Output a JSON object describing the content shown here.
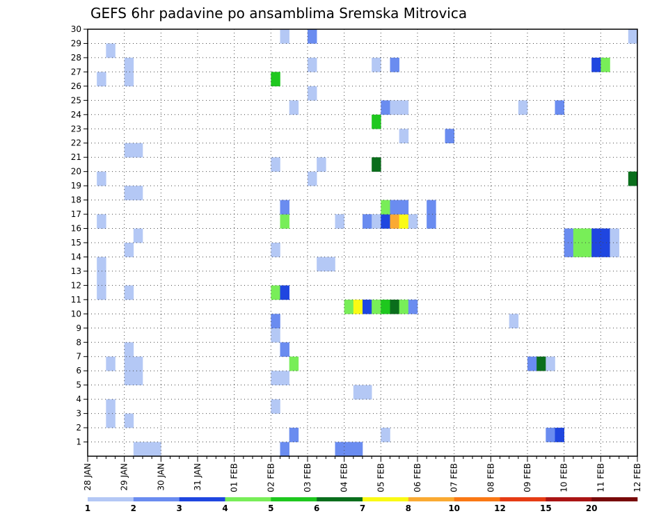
{
  "chart_data": {
    "type": "heatmap",
    "title": "GEFS 6hr padavine po ansamblima Sremska Mitrovica",
    "xlabel": "",
    "ylabel": "",
    "x_ticks": [
      "28 JAN",
      "29 JAN",
      "30 JAN",
      "31 JAN",
      "01 FEB",
      "02 FEB",
      "03 FEB",
      "04 FEB",
      "05 FEB",
      "06 FEB",
      "07 FEB",
      "08 FEB",
      "09 FEB",
      "10 FEB",
      "11 FEB",
      "12 FEB"
    ],
    "y_ticks": [
      "1",
      "2",
      "3",
      "4",
      "5",
      "6",
      "7",
      "8",
      "9",
      "10",
      "11",
      "12",
      "13",
      "14",
      "15",
      "16",
      "17",
      "18",
      "19",
      "20",
      "21",
      "22",
      "23",
      "24",
      "25",
      "26",
      "27",
      "28",
      "29",
      "30"
    ],
    "x_range_days": [
      0,
      15
    ],
    "y_range_members": [
      0,
      30
    ],
    "grid": true,
    "colorbar": {
      "levels": [
        1,
        2,
        3,
        4,
        5,
        6,
        7,
        8,
        10,
        12,
        15,
        20
      ],
      "level_labels": [
        "1",
        "2",
        "3",
        "4",
        "5",
        "6",
        "7",
        "8",
        "10",
        "12",
        "15",
        "20"
      ],
      "colors": [
        "#b4c8f5",
        "#6a8cf0",
        "#1f46e0",
        "#78ee58",
        "#1ec81e",
        "#0a6e1c",
        "#fafa14",
        "#faaa32",
        "#fa7814",
        "#e63c14",
        "#aa1414",
        "#780a0a"
      ]
    },
    "cells_day_member_level": [
      [
        1.25,
        0,
        0
      ],
      [
        1.5,
        0,
        0
      ],
      [
        1.75,
        0,
        0
      ],
      [
        5.25,
        0,
        1
      ],
      [
        6.75,
        0,
        1
      ],
      [
        7,
        0,
        1
      ],
      [
        7.25,
        0,
        1
      ],
      [
        5.5,
        1,
        1
      ],
      [
        8,
        1,
        0
      ],
      [
        12.5,
        1,
        1
      ],
      [
        12.75,
        1,
        2
      ],
      [
        0.5,
        2,
        0
      ],
      [
        1,
        2,
        0
      ],
      [
        0.5,
        3,
        0
      ],
      [
        5,
        3,
        0
      ],
      [
        7.25,
        4,
        0
      ],
      [
        7.5,
        4,
        0
      ],
      [
        1,
        5,
        0
      ],
      [
        1.25,
        5,
        0
      ],
      [
        5,
        5,
        0
      ],
      [
        5.25,
        5,
        0
      ],
      [
        0.5,
        6,
        0
      ],
      [
        1,
        6,
        0
      ],
      [
        1.25,
        6,
        0
      ],
      [
        5.5,
        6,
        3
      ],
      [
        12,
        6,
        1
      ],
      [
        12.25,
        6,
        5
      ],
      [
        12.5,
        6,
        0
      ],
      [
        1,
        7,
        0
      ],
      [
        5.25,
        7,
        1
      ],
      [
        5,
        8,
        0
      ],
      [
        5,
        9,
        1
      ],
      [
        11.5,
        9,
        0
      ],
      [
        7,
        10,
        3
      ],
      [
        7.25,
        10,
        6
      ],
      [
        7.5,
        10,
        2
      ],
      [
        7.75,
        10,
        3
      ],
      [
        8,
        10,
        4
      ],
      [
        8.25,
        10,
        5
      ],
      [
        8.5,
        10,
        3
      ],
      [
        8.75,
        10,
        1
      ],
      [
        5,
        11,
        3
      ],
      [
        5.25,
        11,
        2
      ],
      [
        1,
        11,
        0
      ],
      [
        0.25,
        11,
        0
      ],
      [
        0.25,
        12,
        0
      ],
      [
        0.25,
        13,
        0
      ],
      [
        6.25,
        13,
        0
      ],
      [
        6.5,
        13,
        0
      ],
      [
        1,
        14,
        0
      ],
      [
        5,
        14,
        0
      ],
      [
        13,
        14,
        1
      ],
      [
        13.25,
        14,
        3
      ],
      [
        13.5,
        14,
        3
      ],
      [
        13.75,
        14,
        2
      ],
      [
        14,
        14,
        2
      ],
      [
        14.25,
        14,
        0
      ],
      [
        1.25,
        15,
        0
      ],
      [
        13,
        15,
        1
      ],
      [
        13.25,
        15,
        3
      ],
      [
        13.5,
        15,
        3
      ],
      [
        13.75,
        15,
        2
      ],
      [
        14,
        15,
        2
      ],
      [
        14.25,
        15,
        0
      ],
      [
        0.25,
        16,
        0
      ],
      [
        5.25,
        16,
        3
      ],
      [
        6.75,
        16,
        0
      ],
      [
        7.5,
        16,
        1
      ],
      [
        7.75,
        16,
        0
      ],
      [
        8,
        16,
        2
      ],
      [
        8.25,
        16,
        7
      ],
      [
        8.5,
        16,
        6
      ],
      [
        8.75,
        16,
        0
      ],
      [
        9.25,
        16,
        1
      ],
      [
        5.25,
        17,
        1
      ],
      [
        8,
        17,
        3
      ],
      [
        8.25,
        17,
        1
      ],
      [
        8.5,
        17,
        1
      ],
      [
        9.25,
        17,
        1
      ],
      [
        1,
        18,
        0
      ],
      [
        1.25,
        18,
        0
      ],
      [
        0.25,
        19,
        0
      ],
      [
        6,
        19,
        0
      ],
      [
        14.75,
        19,
        5
      ],
      [
        5,
        20,
        0
      ],
      [
        6.25,
        20,
        0
      ],
      [
        7.75,
        20,
        5
      ],
      [
        1,
        21,
        0
      ],
      [
        1.25,
        21,
        0
      ],
      [
        8.5,
        22,
        0
      ],
      [
        9.75,
        22,
        1
      ],
      [
        7.75,
        23,
        4
      ],
      [
        5.5,
        24,
        0
      ],
      [
        8,
        24,
        1
      ],
      [
        8.25,
        24,
        0
      ],
      [
        8.5,
        24,
        0
      ],
      [
        11.75,
        24,
        0
      ],
      [
        12.75,
        24,
        1
      ],
      [
        6,
        25,
        0
      ],
      [
        0.25,
        26,
        0
      ],
      [
        1,
        26,
        0
      ],
      [
        5,
        26,
        4
      ],
      [
        1,
        27,
        0
      ],
      [
        6,
        27,
        0
      ],
      [
        7.75,
        27,
        0
      ],
      [
        8.25,
        27,
        1
      ],
      [
        13.75,
        27,
        2
      ],
      [
        14,
        27,
        3
      ],
      [
        0.5,
        28,
        0
      ],
      [
        5.25,
        29,
        0
      ],
      [
        6,
        29,
        1
      ],
      [
        14.75,
        29,
        0
      ]
    ]
  }
}
